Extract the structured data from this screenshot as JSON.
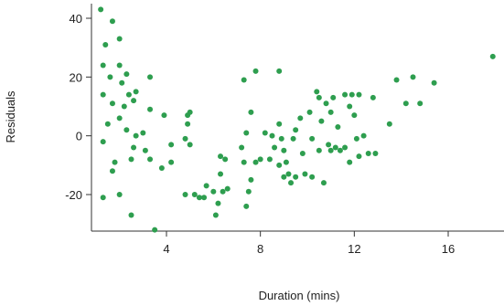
{
  "chart_data": {
    "type": "scatter",
    "title": "",
    "xlabel": "Duration (mins)",
    "ylabel": "Residuals",
    "xlim": [
      0.9,
      18
    ],
    "ylim": [
      -35,
      45
    ],
    "xticks": [
      4,
      8,
      12,
      16
    ],
    "yticks": [
      -20,
      0,
      20,
      40
    ],
    "grid": false,
    "legend": "none",
    "point_color": "#2e9e4f",
    "points": [
      {
        "x": 1.2,
        "y": 43
      },
      {
        "x": 1.7,
        "y": 39
      },
      {
        "x": 1.4,
        "y": 31
      },
      {
        "x": 2.0,
        "y": 33
      },
      {
        "x": 1.3,
        "y": 24
      },
      {
        "x": 2.0,
        "y": 24
      },
      {
        "x": 2.3,
        "y": 21
      },
      {
        "x": 1.6,
        "y": 20
      },
      {
        "x": 2.1,
        "y": 18
      },
      {
        "x": 2.7,
        "y": 15
      },
      {
        "x": 3.3,
        "y": 20
      },
      {
        "x": 1.3,
        "y": 14
      },
      {
        "x": 1.7,
        "y": 11
      },
      {
        "x": 2.4,
        "y": 14
      },
      {
        "x": 2.6,
        "y": 12
      },
      {
        "x": 2.2,
        "y": 10
      },
      {
        "x": 3.3,
        "y": 9
      },
      {
        "x": 1.5,
        "y": 4
      },
      {
        "x": 2.0,
        "y": 6
      },
      {
        "x": 3.9,
        "y": 7
      },
      {
        "x": 1.3,
        "y": -2
      },
      {
        "x": 2.3,
        "y": 2
      },
      {
        "x": 2.7,
        "y": 0
      },
      {
        "x": 3.0,
        "y": 1
      },
      {
        "x": 2.6,
        "y": -4
      },
      {
        "x": 3.1,
        "y": -5
      },
      {
        "x": 4.2,
        "y": -3
      },
      {
        "x": 1.8,
        "y": -9
      },
      {
        "x": 1.7,
        "y": -12
      },
      {
        "x": 2.5,
        "y": -8
      },
      {
        "x": 3.3,
        "y": -8
      },
      {
        "x": 3.8,
        "y": -11
      },
      {
        "x": 4.2,
        "y": -9
      },
      {
        "x": 1.3,
        "y": -21
      },
      {
        "x": 2.0,
        "y": -20
      },
      {
        "x": 2.5,
        "y": -27
      },
      {
        "x": 3.5,
        "y": -32
      },
      {
        "x": 4.9,
        "y": 7
      },
      {
        "x": 5.0,
        "y": 8
      },
      {
        "x": 4.9,
        "y": 4
      },
      {
        "x": 4.8,
        "y": -1
      },
      {
        "x": 5.0,
        "y": -3
      },
      {
        "x": 4.8,
        "y": -20
      },
      {
        "x": 5.2,
        "y": -20
      },
      {
        "x": 5.4,
        "y": -21
      },
      {
        "x": 5.6,
        "y": -21
      },
      {
        "x": 5.7,
        "y": -17
      },
      {
        "x": 6.0,
        "y": -19
      },
      {
        "x": 6.1,
        "y": -27
      },
      {
        "x": 6.2,
        "y": -23
      },
      {
        "x": 6.3,
        "y": -13
      },
      {
        "x": 6.4,
        "y": -19
      },
      {
        "x": 6.6,
        "y": -18
      },
      {
        "x": 6.3,
        "y": -7
      },
      {
        "x": 6.5,
        "y": -8
      },
      {
        "x": 7.3,
        "y": -9
      },
      {
        "x": 7.4,
        "y": -24
      },
      {
        "x": 7.5,
        "y": -19
      },
      {
        "x": 7.6,
        "y": -15
      },
      {
        "x": 7.2,
        "y": -4
      },
      {
        "x": 7.8,
        "y": -9
      },
      {
        "x": 8.0,
        "y": -8
      },
      {
        "x": 7.4,
        "y": 1
      },
      {
        "x": 7.6,
        "y": 8
      },
      {
        "x": 7.3,
        "y": 19
      },
      {
        "x": 7.8,
        "y": 22
      },
      {
        "x": 8.2,
        "y": 1
      },
      {
        "x": 8.5,
        "y": 0
      },
      {
        "x": 8.6,
        "y": -4
      },
      {
        "x": 8.4,
        "y": -8
      },
      {
        "x": 8.8,
        "y": 22
      },
      {
        "x": 8.8,
        "y": 4
      },
      {
        "x": 8.9,
        "y": -1
      },
      {
        "x": 9.0,
        "y": -5
      },
      {
        "x": 9.1,
        "y": -9
      },
      {
        "x": 8.8,
        "y": -10
      },
      {
        "x": 9.2,
        "y": -13
      },
      {
        "x": 9.0,
        "y": -14
      },
      {
        "x": 9.3,
        "y": -16
      },
      {
        "x": 9.5,
        "y": -14
      },
      {
        "x": 9.4,
        "y": -1
      },
      {
        "x": 9.5,
        "y": 2
      },
      {
        "x": 9.7,
        "y": 6
      },
      {
        "x": 9.8,
        "y": -6
      },
      {
        "x": 9.9,
        "y": -13
      },
      {
        "x": 10.1,
        "y": 8
      },
      {
        "x": 10.2,
        "y": -1
      },
      {
        "x": 10.2,
        "y": -14
      },
      {
        "x": 10.4,
        "y": 15
      },
      {
        "x": 10.5,
        "y": 13
      },
      {
        "x": 10.6,
        "y": 5
      },
      {
        "x": 10.5,
        "y": -5
      },
      {
        "x": 10.7,
        "y": -16
      },
      {
        "x": 10.8,
        "y": 11
      },
      {
        "x": 10.9,
        "y": -3
      },
      {
        "x": 11.0,
        "y": 8
      },
      {
        "x": 11.0,
        "y": -5
      },
      {
        "x": 11.1,
        "y": 13
      },
      {
        "x": 11.2,
        "y": -4
      },
      {
        "x": 11.3,
        "y": 3
      },
      {
        "x": 11.4,
        "y": -5
      },
      {
        "x": 11.6,
        "y": 14
      },
      {
        "x": 11.6,
        "y": -4
      },
      {
        "x": 11.8,
        "y": 10
      },
      {
        "x": 11.9,
        "y": 14
      },
      {
        "x": 11.8,
        "y": -9
      },
      {
        "x": 12.0,
        "y": 7
      },
      {
        "x": 12.1,
        "y": -1
      },
      {
        "x": 12.2,
        "y": 14
      },
      {
        "x": 12.2,
        "y": -7
      },
      {
        "x": 12.4,
        "y": 0
      },
      {
        "x": 12.6,
        "y": -6
      },
      {
        "x": 12.8,
        "y": 13
      },
      {
        "x": 12.9,
        "y": -6
      },
      {
        "x": 13.5,
        "y": 4
      },
      {
        "x": 13.8,
        "y": 19
      },
      {
        "x": 14.2,
        "y": 11
      },
      {
        "x": 14.5,
        "y": 20
      },
      {
        "x": 14.8,
        "y": 11
      },
      {
        "x": 15.4,
        "y": 18
      },
      {
        "x": 17.9,
        "y": 27
      }
    ]
  }
}
